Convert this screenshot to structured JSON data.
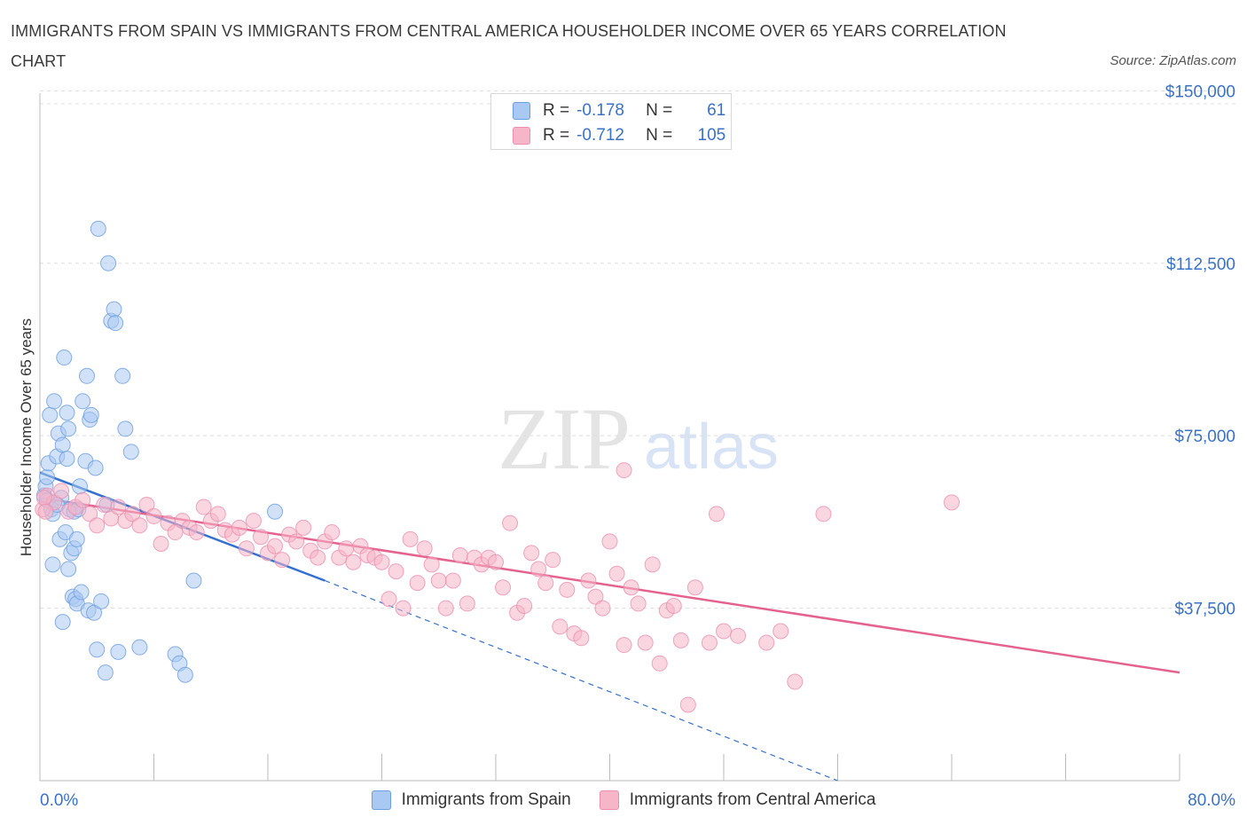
{
  "header": {
    "title": "IMMIGRANTS FROM SPAIN VS IMMIGRANTS FROM CENTRAL AMERICA HOUSEHOLDER INCOME OVER 65 YEARS CORRELATION CHART",
    "source": "Source: ZipAtlas.com"
  },
  "legend": {
    "r_label": "R =",
    "n_label": "N =",
    "series": [
      {
        "r": "-0.178",
        "n": "61",
        "color": "#a9c8f2"
      },
      {
        "r": "-0.712",
        "n": "105",
        "color": "#f6b5c9"
      }
    ]
  },
  "watermark": {
    "zip": "ZIP",
    "atlas": "atlas"
  },
  "colors": {
    "blue_fill": "#a9c8f2",
    "blue_stroke": "#6b9ee0",
    "blue_line": "#3470d0",
    "pink_fill": "#f6b5c9",
    "pink_stroke": "#ec8fae",
    "pink_line": "#e4628f",
    "tick_label": "#3a72c8",
    "grid": "#dddddd"
  },
  "chart_data": {
    "type": "scatter",
    "title": "IMMIGRANTS FROM SPAIN VS IMMIGRANTS FROM CENTRAL AMERICA HOUSEHOLDER INCOME OVER 65 YEARS CORRELATION CHART",
    "xlabel": "",
    "ylabel": "Householder Income Over 65 years",
    "xlim": [
      0,
      80
    ],
    "ylim": [
      0,
      152000
    ],
    "x_tick_labels": [
      "0.0%",
      "80.0%"
    ],
    "y_ticks": [
      37500,
      75000,
      112500,
      150000
    ],
    "y_tick_labels": [
      "$37,500",
      "$75,000",
      "$112,500",
      "$150,000"
    ],
    "grid": "horizontal dashed",
    "legend_position": "top-center",
    "series": [
      {
        "name": "Immigrants from Spain",
        "color": "#a9c8f2",
        "r": -0.178,
        "n": 61,
        "trend": {
          "x": [
            0,
            20
          ],
          "y": [
            67000,
            43500
          ],
          "dashed_to": [
            56,
            0
          ]
        },
        "points": [
          [
            0.3,
            62000
          ],
          [
            0.4,
            64000
          ],
          [
            0.5,
            66000
          ],
          [
            0.5,
            61000
          ],
          [
            0.6,
            69000
          ],
          [
            0.7,
            79500
          ],
          [
            0.8,
            59000
          ],
          [
            0.9,
            47000
          ],
          [
            1.0,
            82500
          ],
          [
            1.2,
            70500
          ],
          [
            1.3,
            75500
          ],
          [
            1.4,
            52500
          ],
          [
            1.5,
            61500
          ],
          [
            1.6,
            73000
          ],
          [
            1.7,
            92000
          ],
          [
            1.8,
            54000
          ],
          [
            1.9,
            80000
          ],
          [
            1.9,
            70000
          ],
          [
            2.0,
            46000
          ],
          [
            2.0,
            76500
          ],
          [
            2.1,
            59000
          ],
          [
            2.2,
            49500
          ],
          [
            2.3,
            40000
          ],
          [
            2.4,
            58500
          ],
          [
            2.4,
            50500
          ],
          [
            2.5,
            39500
          ],
          [
            2.6,
            38500
          ],
          [
            2.7,
            59000
          ],
          [
            2.8,
            64000
          ],
          [
            2.9,
            41000
          ],
          [
            3.0,
            82500
          ],
          [
            3.2,
            69500
          ],
          [
            3.3,
            88000
          ],
          [
            3.4,
            37000
          ],
          [
            3.5,
            78500
          ],
          [
            3.6,
            79500
          ],
          [
            3.8,
            36500
          ],
          [
            3.9,
            68000
          ],
          [
            4.0,
            28500
          ],
          [
            4.1,
            120000
          ],
          [
            4.3,
            39000
          ],
          [
            4.6,
            23500
          ],
          [
            4.7,
            60000
          ],
          [
            4.8,
            112500
          ],
          [
            5.0,
            100000
          ],
          [
            5.2,
            102500
          ],
          [
            5.3,
            99500
          ],
          [
            5.5,
            28000
          ],
          [
            5.8,
            88000
          ],
          [
            6.0,
            76500
          ],
          [
            6.4,
            71500
          ],
          [
            7.0,
            29000
          ],
          [
            9.5,
            27500
          ],
          [
            9.8,
            25500
          ],
          [
            10.2,
            23000
          ],
          [
            10.8,
            43500
          ],
          [
            16.5,
            58500
          ],
          [
            1.6,
            34500
          ],
          [
            2.6,
            52500
          ],
          [
            0.9,
            58000
          ],
          [
            1.2,
            60000
          ]
        ]
      },
      {
        "name": "Immigrants from Central America",
        "color": "#f6b5c9",
        "r": -0.712,
        "n": 105,
        "trend": {
          "x": [
            0,
            80
          ],
          "y": [
            61500,
            23500
          ]
        },
        "points": [
          [
            0.5,
            62000
          ],
          [
            1.0,
            60500
          ],
          [
            1.5,
            63000
          ],
          [
            2.0,
            58500
          ],
          [
            2.5,
            59500
          ],
          [
            3.0,
            61000
          ],
          [
            3.5,
            58000
          ],
          [
            4.0,
            55500
          ],
          [
            4.5,
            60000
          ],
          [
            5.0,
            57000
          ],
          [
            5.5,
            59500
          ],
          [
            6.0,
            56500
          ],
          [
            6.5,
            58000
          ],
          [
            7.0,
            55500
          ],
          [
            7.5,
            60000
          ],
          [
            8.0,
            57500
          ],
          [
            8.5,
            51500
          ],
          [
            9.0,
            56000
          ],
          [
            9.5,
            54000
          ],
          [
            10.0,
            56500
          ],
          [
            10.5,
            55000
          ],
          [
            11.0,
            54000
          ],
          [
            11.5,
            59500
          ],
          [
            12.0,
            56500
          ],
          [
            12.5,
            58000
          ],
          [
            13.0,
            54500
          ],
          [
            13.5,
            53500
          ],
          [
            14.0,
            55000
          ],
          [
            14.5,
            50500
          ],
          [
            15.0,
            56500
          ],
          [
            15.5,
            53000
          ],
          [
            16.0,
            49500
          ],
          [
            16.5,
            51000
          ],
          [
            17.0,
            48000
          ],
          [
            17.5,
            53500
          ],
          [
            18.0,
            52000
          ],
          [
            18.5,
            55000
          ],
          [
            19.0,
            50000
          ],
          [
            19.5,
            48500
          ],
          [
            20.0,
            52000
          ],
          [
            20.5,
            54000
          ],
          [
            21.0,
            48500
          ],
          [
            21.5,
            50500
          ],
          [
            22.0,
            47500
          ],
          [
            22.5,
            51000
          ],
          [
            23.0,
            49000
          ],
          [
            23.5,
            48500
          ],
          [
            24.0,
            47500
          ],
          [
            24.5,
            39500
          ],
          [
            25.0,
            45500
          ],
          [
            25.5,
            37500
          ],
          [
            26.0,
            52500
          ],
          [
            26.5,
            43000
          ],
          [
            27.0,
            50500
          ],
          [
            27.5,
            47000
          ],
          [
            28.0,
            43500
          ],
          [
            28.5,
            37500
          ],
          [
            29.0,
            43500
          ],
          [
            29.5,
            49000
          ],
          [
            30.0,
            38500
          ],
          [
            30.5,
            48500
          ],
          [
            31.0,
            47000
          ],
          [
            31.5,
            48500
          ],
          [
            32.0,
            47500
          ],
          [
            32.5,
            42000
          ],
          [
            33.0,
            56000
          ],
          [
            33.5,
            36500
          ],
          [
            34.0,
            38000
          ],
          [
            34.5,
            49500
          ],
          [
            35.0,
            46000
          ],
          [
            35.5,
            43000
          ],
          [
            36.0,
            48000
          ],
          [
            36.5,
            33500
          ],
          [
            37.0,
            41500
          ],
          [
            37.5,
            32000
          ],
          [
            38.0,
            31000
          ],
          [
            38.5,
            43500
          ],
          [
            39.0,
            40000
          ],
          [
            39.5,
            37500
          ],
          [
            40.0,
            52000
          ],
          [
            40.5,
            45000
          ],
          [
            41.0,
            29500
          ],
          [
            41.5,
            42000
          ],
          [
            42.0,
            38500
          ],
          [
            42.5,
            30000
          ],
          [
            43.0,
            47000
          ],
          [
            43.5,
            25500
          ],
          [
            44.0,
            37000
          ],
          [
            44.5,
            38000
          ],
          [
            45.0,
            30500
          ],
          [
            46.0,
            42000
          ],
          [
            47.0,
            30000
          ],
          [
            48.0,
            32500
          ],
          [
            49.0,
            31500
          ],
          [
            51.0,
            30000
          ],
          [
            52.0,
            32500
          ],
          [
            53.0,
            21500
          ],
          [
            47.5,
            58000
          ],
          [
            55.0,
            58000
          ],
          [
            64.0,
            60500
          ],
          [
            41.0,
            67500
          ],
          [
            45.5,
            16500
          ],
          [
            0.2,
            59000
          ],
          [
            0.3,
            61500
          ],
          [
            0.4,
            58500
          ]
        ]
      }
    ]
  },
  "bottom_legend": [
    {
      "label": "Immigrants from Spain",
      "color": "#a9c8f2"
    },
    {
      "label": "Immigrants from Central America",
      "color": "#f6b5c9"
    }
  ]
}
